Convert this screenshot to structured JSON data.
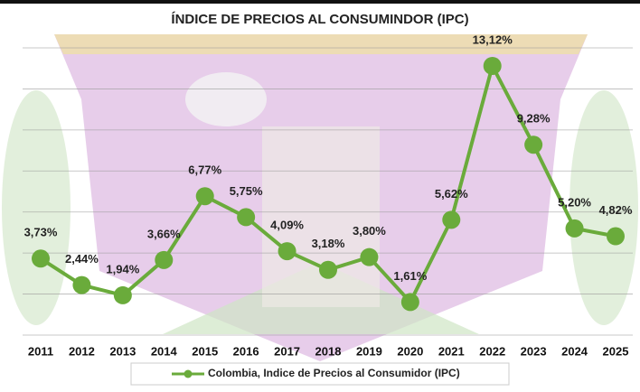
{
  "chart_data": {
    "type": "line",
    "title": "ÍNDICE DE PRECIOS AL CONSUMINDOR (IPC)",
    "categories": [
      "2011",
      "2012",
      "2013",
      "2014",
      "2015",
      "2016",
      "2017",
      "2018",
      "2019",
      "2020",
      "2021",
      "2022",
      "2023",
      "2024",
      "2025"
    ],
    "series": [
      {
        "name": "Colombia, Indice de Precios al Consumidor (IPC)",
        "color": "#6aab3b",
        "values": [
          3.73,
          2.44,
          1.94,
          3.66,
          6.77,
          5.75,
          4.09,
          3.18,
          3.8,
          1.61,
          5.62,
          13.12,
          9.28,
          5.2,
          4.82
        ],
        "value_labels": [
          "3,73%",
          "2,44%",
          "1,94%",
          "3,66%",
          "6,77%",
          "5,75%",
          "4,09%",
          "3,18%",
          "3,80%",
          "1,61%",
          "5,62%",
          "13,12%",
          "9,28%",
          "5,20%",
          "4,82%"
        ]
      }
    ],
    "ylim": [
      0,
      14
    ],
    "yticks": [
      0,
      2,
      4,
      6,
      8,
      10,
      12,
      14
    ],
    "grid": true,
    "legend": "bottom"
  }
}
